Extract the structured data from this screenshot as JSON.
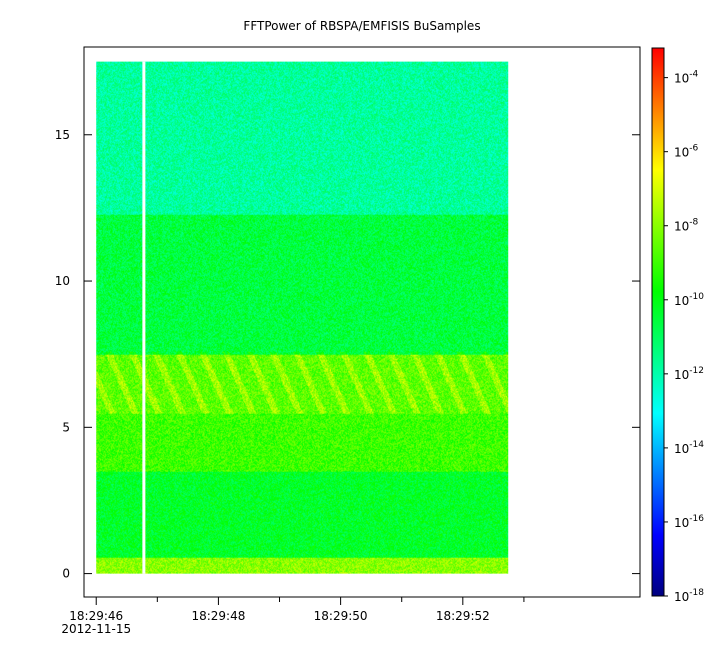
{
  "chart_data": {
    "type": "heatmap",
    "title": "FFTPower of RBSPA/EMFISIS  BuSamples",
    "xlabel": "",
    "ylabel": "",
    "x_start_seconds": 46.0,
    "xlim_seconds": [
      45.8,
      54.9
    ],
    "data_end_seconds": 52.75,
    "data_gap_seconds": 46.78,
    "x_ticks": [
      {
        "sec": 46,
        "label": "18:29:46",
        "date": "2012-11-15"
      },
      {
        "sec": 48,
        "label": "18:29:48"
      },
      {
        "sec": 50,
        "label": "18:29:50"
      },
      {
        "sec": 52,
        "label": "18:29:52"
      }
    ],
    "x_minor_ticks_seconds": [
      47,
      49,
      51,
      53
    ],
    "y_ticks": [
      0,
      5,
      10,
      15
    ],
    "ylim": [
      -0.8,
      18.0
    ],
    "data_ymax": 17.5,
    "log_scale_colorbar": true,
    "colorbar": {
      "range_log10": [
        -18,
        -3.2
      ],
      "tick_exponents": [
        -4,
        -6,
        -8,
        -10,
        -12,
        -14,
        -16,
        -18
      ],
      "tick_base": "10",
      "colormap": [
        "#00007f",
        "#0000ff",
        "#007fff",
        "#00ffff",
        "#00ff7f",
        "#00ff00",
        "#7fff00",
        "#ffff00",
        "#ff7f00",
        "#ff0000"
      ]
    },
    "bands": [
      {
        "fmin": 0.0,
        "fmax": 0.55,
        "log_power": -8.0
      },
      {
        "fmin": 0.55,
        "fmax": 3.5,
        "log_power": -10.3
      },
      {
        "fmin": 3.5,
        "fmax": 5.5,
        "log_power": -9.0
      },
      {
        "fmin": 5.5,
        "fmax": 7.5,
        "log_power": -8.6
      },
      {
        "fmin": 7.5,
        "fmax": 12.3,
        "log_power": -10.6
      },
      {
        "fmin": 12.3,
        "fmax": 17.5,
        "log_power": -11.8
      }
    ]
  }
}
